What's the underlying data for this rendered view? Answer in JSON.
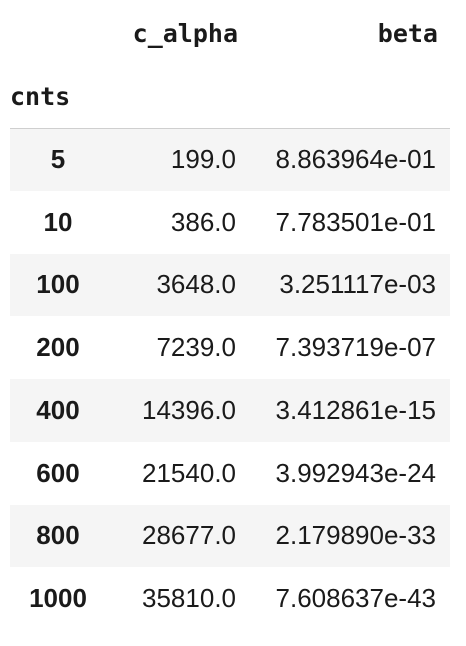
{
  "table": {
    "columns": [
      "c_alpha",
      "beta"
    ],
    "index_name": "cnts",
    "rows": [
      {
        "cnts": "5",
        "c_alpha": "199.0",
        "beta": "8.863964e-01"
      },
      {
        "cnts": "10",
        "c_alpha": "386.0",
        "beta": "7.783501e-01"
      },
      {
        "cnts": "100",
        "c_alpha": "3648.0",
        "beta": "3.251117e-03"
      },
      {
        "cnts": "200",
        "c_alpha": "7239.0",
        "beta": "7.393719e-07"
      },
      {
        "cnts": "400",
        "c_alpha": "14396.0",
        "beta": "3.412861e-15"
      },
      {
        "cnts": "600",
        "c_alpha": "21540.0",
        "beta": "3.992943e-24"
      },
      {
        "cnts": "800",
        "c_alpha": "28677.0",
        "beta": "2.179890e-33"
      },
      {
        "cnts": "1000",
        "c_alpha": "35810.0",
        "beta": "7.608637e-43"
      }
    ]
  }
}
